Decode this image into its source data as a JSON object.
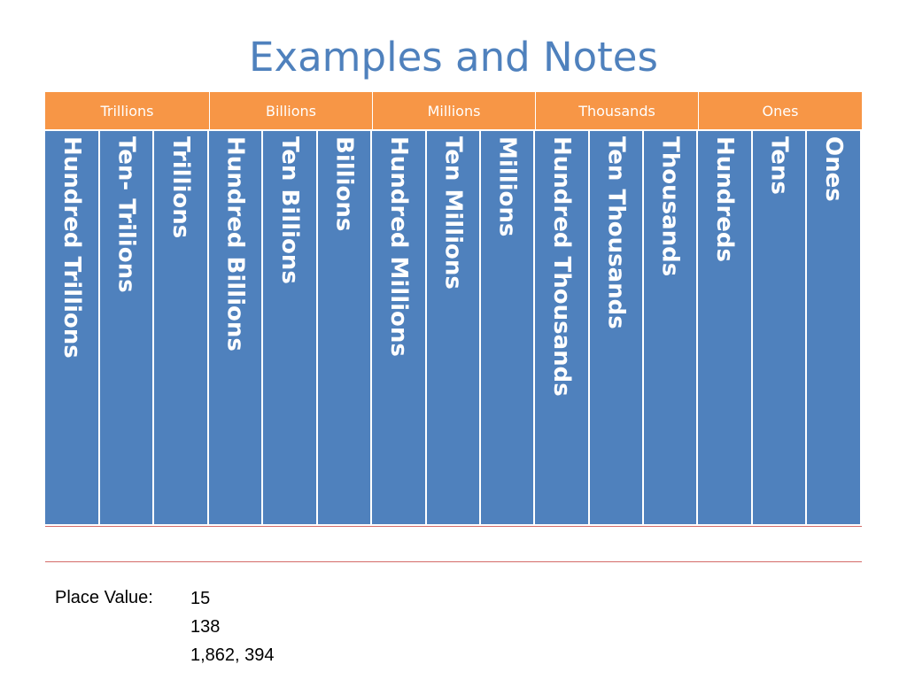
{
  "title": "Examples and Notes",
  "table": {
    "groups": [
      "Trillions",
      "Billions",
      "Millions",
      "Thousands",
      "Ones"
    ],
    "columns": [
      "Hundred Trillions",
      "Ten- Trilions",
      "Trillions",
      "Hundred Billions",
      "Ten Billions",
      "Billions",
      "Hundred Millions",
      "Ten Millions",
      "Millions",
      "Hundred Thousands",
      "Ten Thousands",
      "Thousands",
      "Hundreds",
      "Tens",
      "Ones"
    ],
    "colors": {
      "header": "#f79646",
      "columns": "#4f81bd",
      "rule": "#d46b68"
    }
  },
  "notes": {
    "label": "Place Value:",
    "examples": [
      "15",
      "138",
      "1,862, 394"
    ]
  }
}
